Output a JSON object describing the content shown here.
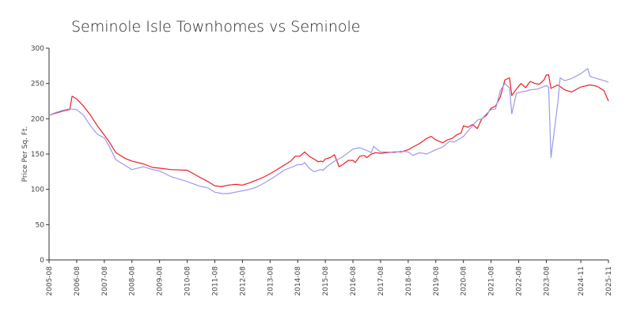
{
  "chart_data": {
    "type": "line",
    "title": "Seminole Isle Townhomes vs Seminole",
    "xlabel": "",
    "ylabel": "Price Per Sq. Ft.",
    "ylim": [
      0,
      300
    ],
    "yticks": [
      0,
      50,
      100,
      150,
      200,
      250,
      300
    ],
    "xtick_labels": [
      "2005-08",
      "2006-08",
      "2007-08",
      "2008-08",
      "2009-08",
      "2010-08",
      "2011-08",
      "2012-08",
      "2013-08",
      "2014-08",
      "2015-08",
      "2016-08",
      "2017-08",
      "2018-08",
      "2019-08",
      "2020-08",
      "2021-08",
      "2022-08",
      "2023-08",
      "2024-11",
      "2025-11"
    ],
    "grid": false,
    "legend": "none",
    "series": [
      {
        "color": "#ee1c25",
        "points": [
          [
            "2005-08",
            205
          ],
          [
            "2005-11",
            208
          ],
          [
            "2006-02",
            211
          ],
          [
            "2006-05",
            213
          ],
          [
            "2006-06",
            232
          ],
          [
            "2006-08",
            228
          ],
          [
            "2006-11",
            218
          ],
          [
            "2007-02",
            205
          ],
          [
            "2007-05",
            190
          ],
          [
            "2007-08",
            177
          ],
          [
            "2007-10",
            168
          ],
          [
            "2008-01",
            152
          ],
          [
            "2008-05",
            144
          ],
          [
            "2008-08",
            140
          ],
          [
            "2009-01",
            136
          ],
          [
            "2009-05",
            131
          ],
          [
            "2009-08",
            130
          ],
          [
            "2010-01",
            128
          ],
          [
            "2010-08",
            127
          ],
          [
            "2011-01",
            118
          ],
          [
            "2011-05",
            111
          ],
          [
            "2011-08",
            105
          ],
          [
            "2011-11",
            104
          ],
          [
            "2012-02",
            106
          ],
          [
            "2012-05",
            107
          ],
          [
            "2012-08",
            106
          ],
          [
            "2012-11",
            109
          ],
          [
            "2013-02",
            113
          ],
          [
            "2013-05",
            117
          ],
          [
            "2013-08",
            122
          ],
          [
            "2013-11",
            128
          ],
          [
            "2014-02",
            134
          ],
          [
            "2014-05",
            140
          ],
          [
            "2014-07",
            147
          ],
          [
            "2014-09",
            147
          ],
          [
            "2014-11",
            153
          ],
          [
            "2015-01",
            147
          ],
          [
            "2015-03",
            143
          ],
          [
            "2015-05",
            139
          ],
          [
            "2015-06",
            140
          ],
          [
            "2015-07",
            139
          ],
          [
            "2015-08",
            143
          ],
          [
            "2015-10",
            145
          ],
          [
            "2015-12",
            149
          ],
          [
            "2016-02",
            132
          ],
          [
            "2016-04",
            136
          ],
          [
            "2016-06",
            141
          ],
          [
            "2016-08",
            141
          ],
          [
            "2016-09",
            138
          ],
          [
            "2016-11",
            147
          ],
          [
            "2017-01",
            148
          ],
          [
            "2017-02",
            145
          ],
          [
            "2017-04",
            150
          ],
          [
            "2017-06",
            152
          ],
          [
            "2017-08",
            151
          ],
          [
            "2017-11",
            152
          ],
          [
            "2018-02",
            153
          ],
          [
            "2018-05",
            153
          ],
          [
            "2018-08",
            156
          ],
          [
            "2018-10",
            160
          ],
          [
            "2019-01",
            165
          ],
          [
            "2019-04",
            172
          ],
          [
            "2019-06",
            175
          ],
          [
            "2019-08",
            170
          ],
          [
            "2019-11",
            166
          ],
          [
            "2020-01",
            170
          ],
          [
            "2020-03",
            172
          ],
          [
            "2020-05",
            177
          ],
          [
            "2020-07",
            180
          ],
          [
            "2020-08",
            190
          ],
          [
            "2020-10",
            188
          ],
          [
            "2020-12",
            192
          ],
          [
            "2021-02",
            186
          ],
          [
            "2021-04",
            200
          ],
          [
            "2021-06",
            205
          ],
          [
            "2021-08",
            215
          ],
          [
            "2021-10",
            218
          ],
          [
            "2021-12",
            231
          ],
          [
            "2022-02",
            255
          ],
          [
            "2022-04",
            258
          ],
          [
            "2022-05",
            233
          ],
          [
            "2022-07",
            242
          ],
          [
            "2022-09",
            250
          ],
          [
            "2022-11",
            244
          ],
          [
            "2023-01",
            253
          ],
          [
            "2023-03",
            250
          ],
          [
            "2023-05",
            249
          ],
          [
            "2023-07",
            255
          ],
          [
            "2023-08",
            262
          ],
          [
            "2023-09",
            262
          ],
          [
            "2023-10",
            243
          ],
          [
            "2024-01",
            248
          ],
          [
            "2024-04",
            241
          ],
          [
            "2024-07",
            238
          ],
          [
            "2024-11",
            245
          ],
          [
            "2025-03",
            248
          ],
          [
            "2025-06",
            246
          ],
          [
            "2025-09",
            240
          ],
          [
            "2025-11",
            225
          ]
        ]
      },
      {
        "color": "#9999f0",
        "points": [
          [
            "2005-08",
            205
          ],
          [
            "2005-11",
            209
          ],
          [
            "2006-02",
            212
          ],
          [
            "2006-05",
            214
          ],
          [
            "2006-08",
            213
          ],
          [
            "2006-11",
            205
          ],
          [
            "2007-02",
            190
          ],
          [
            "2007-05",
            178
          ],
          [
            "2007-08",
            173
          ],
          [
            "2007-10",
            162
          ],
          [
            "2008-01",
            142
          ],
          [
            "2008-05",
            134
          ],
          [
            "2008-08",
            128
          ],
          [
            "2009-01",
            132
          ],
          [
            "2009-05",
            128
          ],
          [
            "2009-08",
            126
          ],
          [
            "2010-01",
            118
          ],
          [
            "2010-08",
            111
          ],
          [
            "2011-01",
            105
          ],
          [
            "2011-05",
            102
          ],
          [
            "2011-08",
            96
          ],
          [
            "2011-11",
            94
          ],
          [
            "2012-02",
            94
          ],
          [
            "2012-05",
            96
          ],
          [
            "2012-08",
            98
          ],
          [
            "2012-11",
            100
          ],
          [
            "2013-02",
            103
          ],
          [
            "2013-05",
            108
          ],
          [
            "2013-08",
            114
          ],
          [
            "2013-11",
            120
          ],
          [
            "2014-02",
            127
          ],
          [
            "2014-05",
            131
          ],
          [
            "2014-08",
            135
          ],
          [
            "2014-10",
            135
          ],
          [
            "2014-11",
            138
          ],
          [
            "2015-01",
            130
          ],
          [
            "2015-03",
            125
          ],
          [
            "2015-06",
            128
          ],
          [
            "2015-07",
            127
          ],
          [
            "2015-09",
            133
          ],
          [
            "2015-12",
            140
          ],
          [
            "2016-03",
            145
          ],
          [
            "2016-06",
            152
          ],
          [
            "2016-08",
            157
          ],
          [
            "2016-11",
            159
          ],
          [
            "2017-02",
            155
          ],
          [
            "2017-04",
            152
          ],
          [
            "2017-05",
            161
          ],
          [
            "2017-06",
            158
          ],
          [
            "2017-08",
            153
          ],
          [
            "2017-11",
            153
          ],
          [
            "2018-02",
            152
          ],
          [
            "2018-05",
            154
          ],
          [
            "2018-08",
            153
          ],
          [
            "2018-10",
            148
          ],
          [
            "2019-01",
            152
          ],
          [
            "2019-04",
            150
          ],
          [
            "2019-08",
            156
          ],
          [
            "2019-11",
            160
          ],
          [
            "2020-02",
            168
          ],
          [
            "2020-04",
            167
          ],
          [
            "2020-06",
            171
          ],
          [
            "2020-08",
            175
          ],
          [
            "2020-10",
            183
          ],
          [
            "2020-12",
            190
          ],
          [
            "2021-02",
            198
          ],
          [
            "2021-04",
            200
          ],
          [
            "2021-06",
            207
          ],
          [
            "2021-08",
            213
          ],
          [
            "2021-10",
            214
          ],
          [
            "2021-12",
            240
          ],
          [
            "2022-02",
            250
          ],
          [
            "2022-04",
            244
          ],
          [
            "2022-05",
            207
          ],
          [
            "2022-07",
            236
          ],
          [
            "2022-09",
            238
          ],
          [
            "2022-11",
            239
          ],
          [
            "2023-01",
            241
          ],
          [
            "2023-04",
            242
          ],
          [
            "2023-08",
            247
          ],
          [
            "2023-09",
            245
          ],
          [
            "2023-10",
            145
          ],
          [
            "2024-01",
            223
          ],
          [
            "2024-02",
            258
          ],
          [
            "2024-04",
            254
          ],
          [
            "2024-07",
            257
          ],
          [
            "2024-11",
            264
          ],
          [
            "2025-02",
            271
          ],
          [
            "2025-03",
            260
          ],
          [
            "2025-06",
            257
          ],
          [
            "2025-09",
            254
          ],
          [
            "2025-11",
            252
          ]
        ]
      }
    ]
  }
}
